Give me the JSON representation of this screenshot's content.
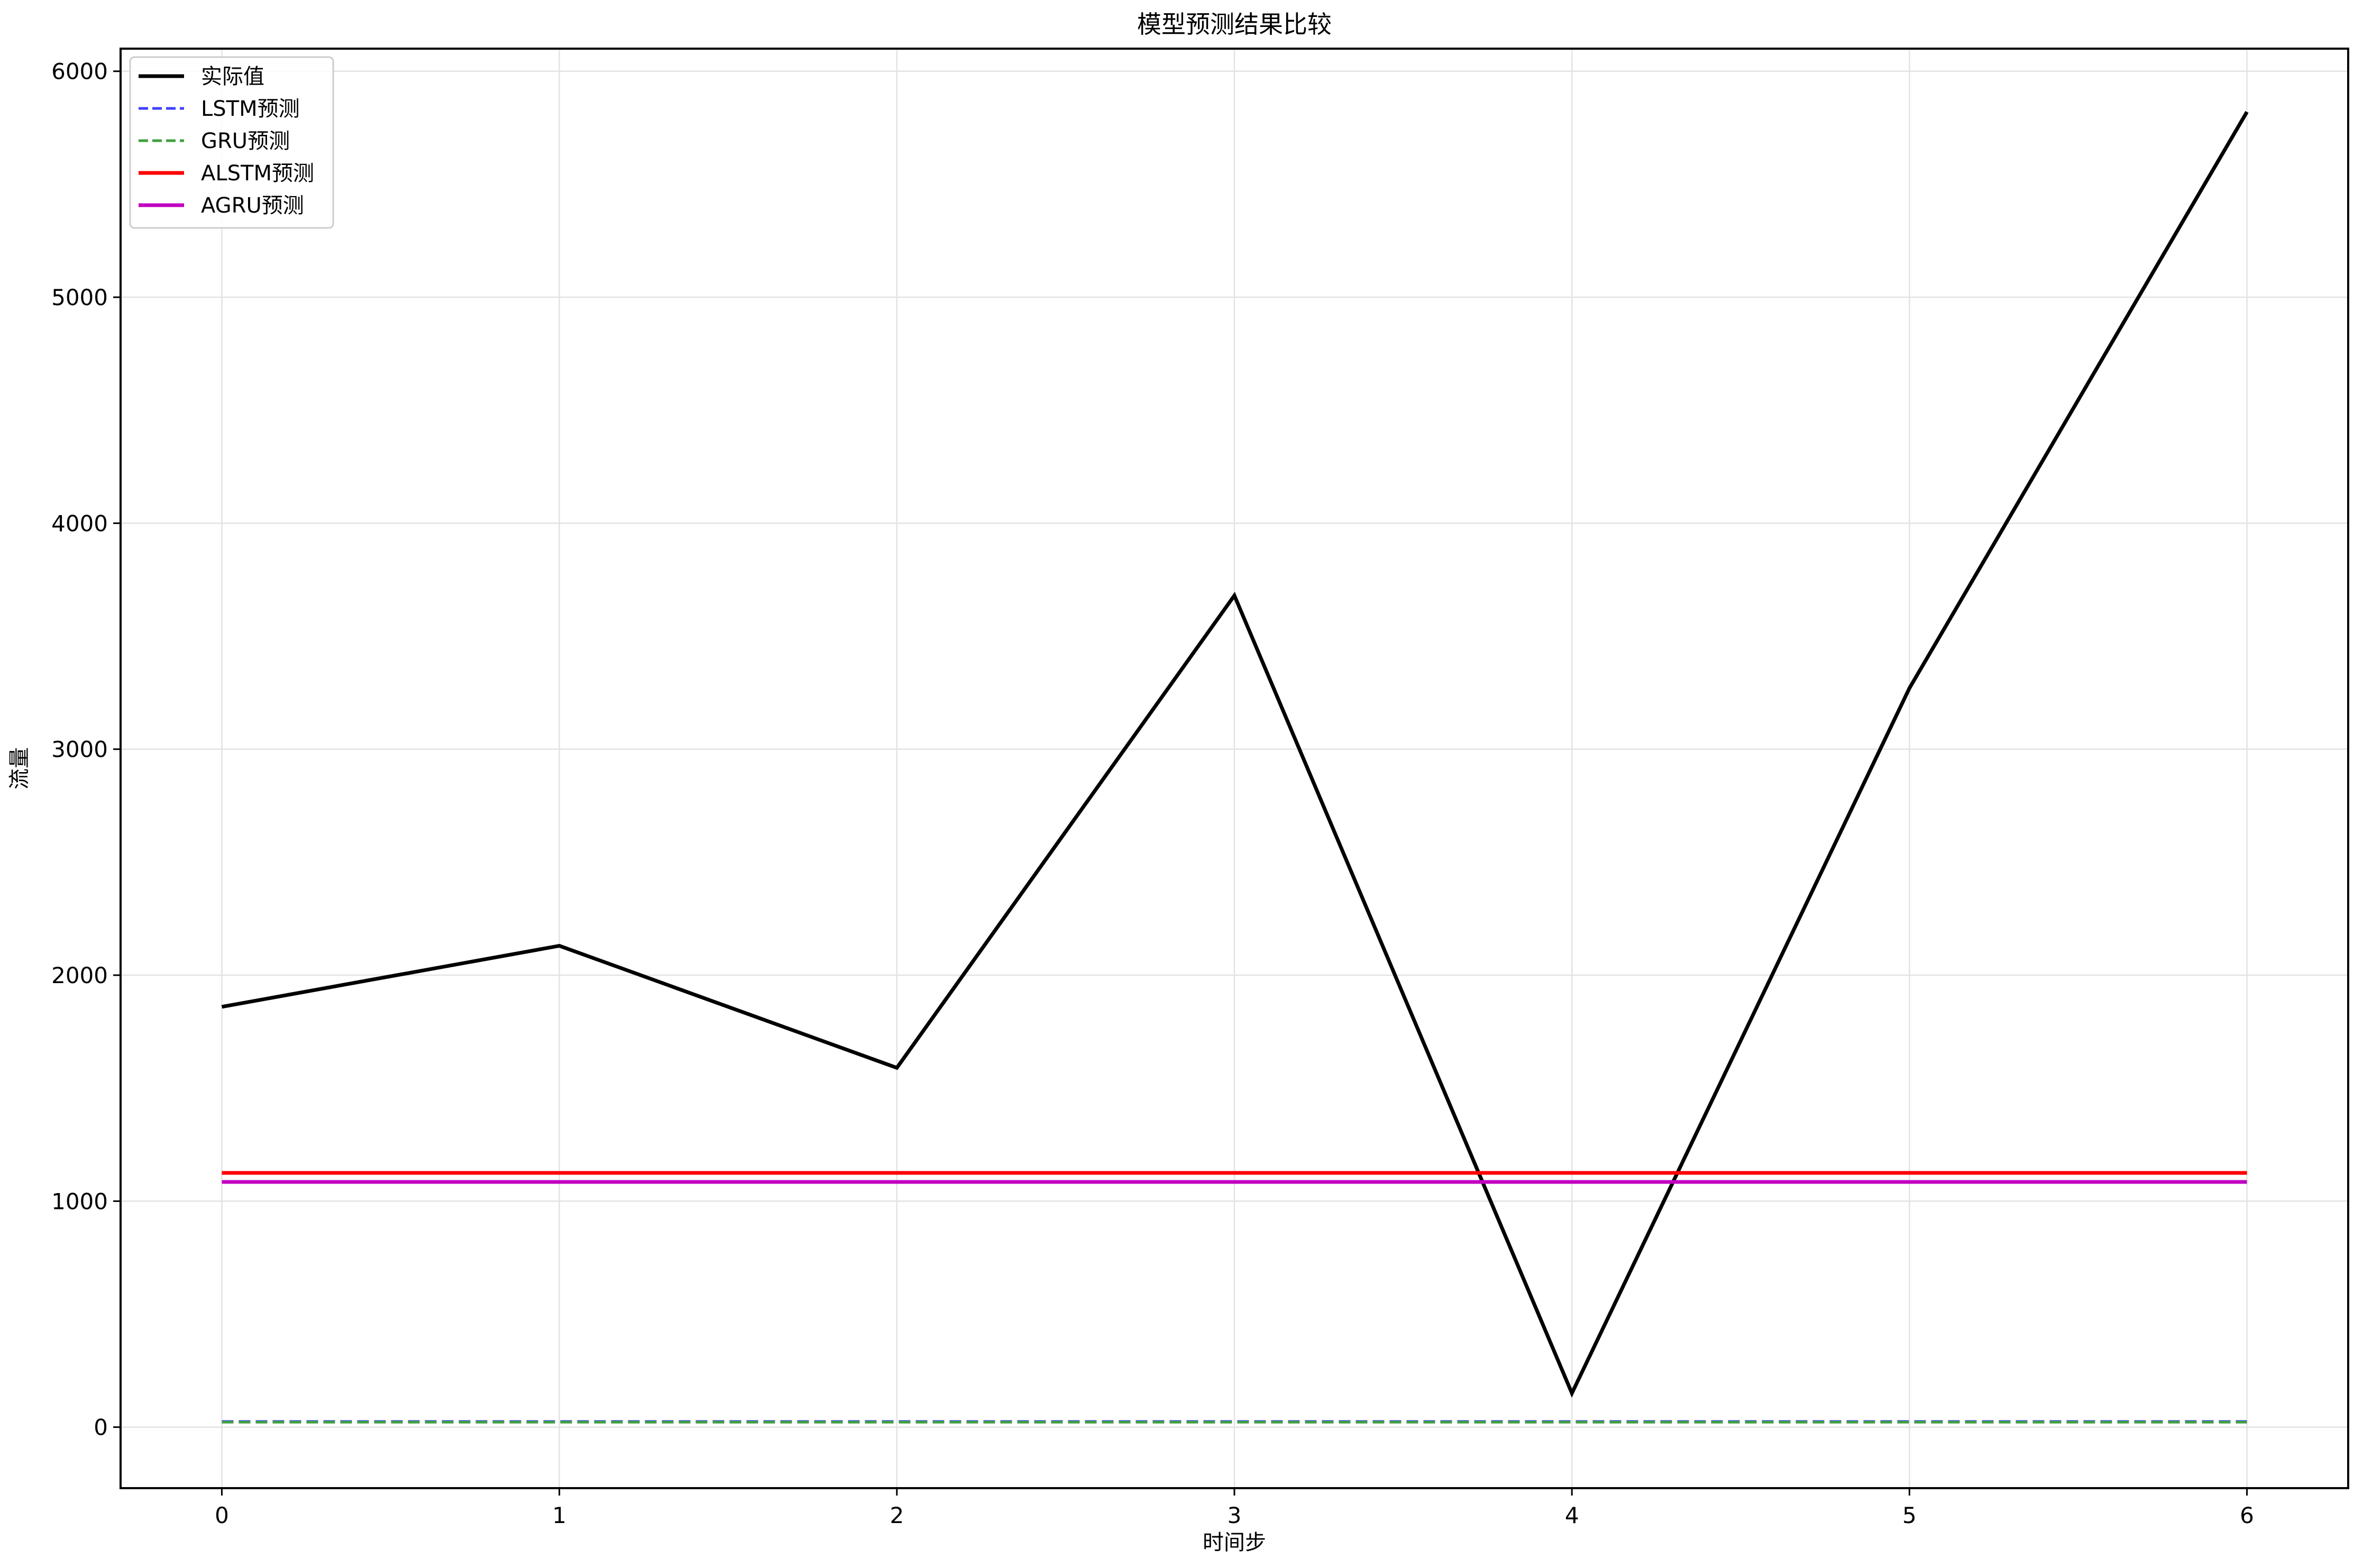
{
  "chart_data": {
    "type": "line",
    "title": "模型预测结果比较",
    "xlabel": "时间步",
    "ylabel": "流量",
    "x": [
      0,
      1,
      2,
      3,
      4,
      5,
      6
    ],
    "xticks": [
      0,
      1,
      2,
      3,
      4,
      5,
      6
    ],
    "yticks": [
      0,
      1000,
      2000,
      3000,
      4000,
      5000,
      6000
    ],
    "xlim": [
      -0.3,
      6.3
    ],
    "ylim": [
      -270,
      6100
    ],
    "grid": true,
    "legend_position": "top-left",
    "series": [
      {
        "name": "实际值",
        "values": [
          1860,
          2130,
          1590,
          3680,
          150,
          3270,
          5820
        ],
        "color": "#000000",
        "style": "solid"
      },
      {
        "name": "LSTM预测",
        "values": [
          25,
          25,
          25,
          25,
          25,
          25,
          25
        ],
        "color": "#4040ff",
        "style": "dashed"
      },
      {
        "name": "GRU预测",
        "values": [
          22,
          22,
          22,
          22,
          22,
          22,
          22
        ],
        "color": "#40a040",
        "style": "dashed"
      },
      {
        "name": "ALSTM预测",
        "values": [
          1125,
          1125,
          1125,
          1125,
          1125,
          1125,
          1125
        ],
        "color": "#ff0000",
        "style": "solid"
      },
      {
        "name": "AGRU预测",
        "values": [
          1085,
          1085,
          1085,
          1085,
          1085,
          1085,
          1085
        ],
        "color": "#c000c0",
        "style": "solid"
      }
    ]
  }
}
